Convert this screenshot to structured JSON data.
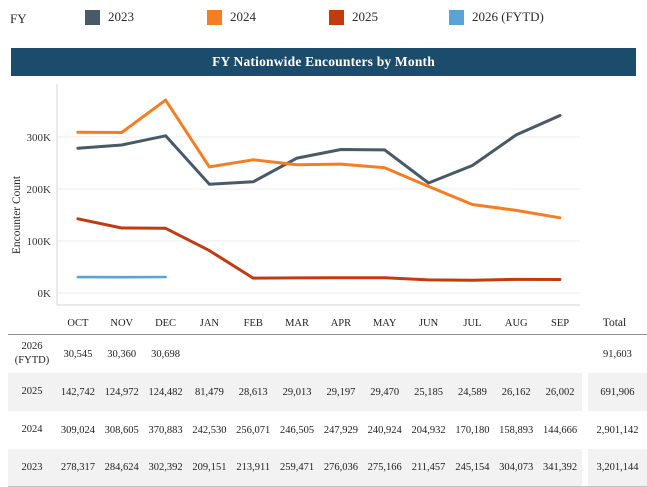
{
  "legend": {
    "label": "FY",
    "items": [
      {
        "label": "2023",
        "color": "#4a5968"
      },
      {
        "label": "2024",
        "color": "#f57e24"
      },
      {
        "label": "2025",
        "color": "#c23a10"
      },
      {
        "label": "2026 (FYTD)",
        "color": "#5ba3d4"
      }
    ]
  },
  "title": "FY Nationwide Encounters by Month",
  "colors": {
    "title_bar": "#1c4c6c",
    "stripe": "#f2f2f2",
    "grid_line": "#ececec",
    "axis_line": "#d6d6d6",
    "text": "#222222"
  },
  "chart_data": {
    "type": "line",
    "categories": [
      "OCT",
      "NOV",
      "DEC",
      "JAN",
      "FEB",
      "MAR",
      "APR",
      "MAY",
      "JUN",
      "JUL",
      "AUG",
      "SEP"
    ],
    "series": [
      {
        "name": "2023",
        "color": "#4a5968",
        "values": [
          278317,
          284624,
          302392,
          209151,
          213911,
          259471,
          276036,
          275166,
          211457,
          245154,
          304073,
          341392
        ]
      },
      {
        "name": "2024",
        "color": "#f57e24",
        "values": [
          309024,
          308605,
          370883,
          242530,
          256071,
          246505,
          247929,
          240924,
          204932,
          170180,
          158893,
          144666
        ]
      },
      {
        "name": "2025",
        "color": "#c23a10",
        "values": [
          142742,
          124972,
          124482,
          81479,
          28613,
          29013,
          29197,
          29470,
          25185,
          24589,
          26162,
          26002
        ]
      },
      {
        "name": "2026 (FYTD)",
        "color": "#5ba3d4",
        "values": [
          30545,
          30360,
          30698
        ]
      }
    ],
    "title": "FY Nationwide Encounters by Month",
    "xlabel": "",
    "ylabel": "Encounter Count",
    "yticks": [
      {
        "value": 0,
        "label": "0K"
      },
      {
        "value": 100000,
        "label": "100K"
      },
      {
        "value": 200000,
        "label": "200K"
      },
      {
        "value": 300000,
        "label": "300K"
      }
    ],
    "ylim": [
      0,
      400000
    ],
    "grid": true,
    "legend_position": "top"
  },
  "table": {
    "columns": [
      "OCT",
      "NOV",
      "DEC",
      "JAN",
      "FEB",
      "MAR",
      "APR",
      "MAY",
      "JUN",
      "JUL",
      "AUG",
      "SEP"
    ],
    "total_label": "Total",
    "rows": [
      {
        "label": "2026 (FYTD)",
        "striped": false,
        "values": [
          "30,545",
          "30,360",
          "30,698",
          "",
          "",
          "",
          "",
          "",
          "",
          "",
          "",
          ""
        ],
        "total": "91,603"
      },
      {
        "label": "2025",
        "striped": true,
        "values": [
          "142,742",
          "124,972",
          "124,482",
          "81,479",
          "28,613",
          "29,013",
          "29,197",
          "29,470",
          "25,185",
          "24,589",
          "26,162",
          "26,002"
        ],
        "total": "691,906"
      },
      {
        "label": "2024",
        "striped": false,
        "values": [
          "309,024",
          "308,605",
          "370,883",
          "242,530",
          "256,071",
          "246,505",
          "247,929",
          "240,924",
          "204,932",
          "170,180",
          "158,893",
          "144,666"
        ],
        "total": "2,901,142"
      },
      {
        "label": "2023",
        "striped": true,
        "values": [
          "278,317",
          "284,624",
          "302,392",
          "209,151",
          "213,911",
          "259,471",
          "276,036",
          "275,166",
          "211,457",
          "245,154",
          "304,073",
          "341,392"
        ],
        "total": "3,201,144"
      }
    ]
  }
}
